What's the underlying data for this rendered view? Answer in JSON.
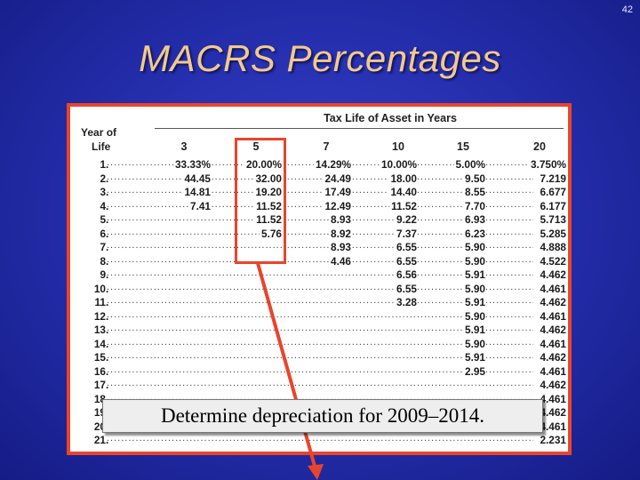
{
  "slide": {
    "page_number": "42",
    "title": "MACRS Percentages",
    "callout": "Determine depreciation for 2009–2014."
  },
  "table": {
    "group_header": "Tax Life of Asset in Years",
    "year_header_line1": "Year of",
    "year_header_line2": "Life",
    "columns": [
      "3",
      "5",
      "7",
      "10",
      "15",
      "20"
    ],
    "rows": [
      {
        "year": "1",
        "values": [
          "33.33%",
          "20.00%",
          "14.29%",
          "10.00%",
          "5.00%",
          "3.750%"
        ]
      },
      {
        "year": "2",
        "values": [
          "44.45",
          "32.00",
          "24.49",
          "18.00",
          "9.50",
          "7.219"
        ]
      },
      {
        "year": "3",
        "values": [
          "14.81",
          "19.20",
          "17.49",
          "14.40",
          "8.55",
          "6.677"
        ]
      },
      {
        "year": "4",
        "values": [
          "7.41",
          "11.52",
          "12.49",
          "11.52",
          "7.70",
          "6.177"
        ]
      },
      {
        "year": "5",
        "values": [
          "",
          "11.52",
          "8.93",
          "9.22",
          "6.93",
          "5.713"
        ]
      },
      {
        "year": "6",
        "values": [
          "",
          "5.76",
          "8.92",
          "7.37",
          "6.23",
          "5.285"
        ]
      },
      {
        "year": "7",
        "values": [
          "",
          "",
          "8.93",
          "6.55",
          "5.90",
          "4.888"
        ]
      },
      {
        "year": "8",
        "values": [
          "",
          "",
          "4.46",
          "6.55",
          "5.90",
          "4.522"
        ]
      },
      {
        "year": "9",
        "values": [
          "",
          "",
          "",
          "6.56",
          "5.91",
          "4.462"
        ]
      },
      {
        "year": "10",
        "values": [
          "",
          "",
          "",
          "6.55",
          "5.90",
          "4.461"
        ]
      },
      {
        "year": "11",
        "values": [
          "",
          "",
          "",
          "3.28",
          "5.91",
          "4.462"
        ]
      },
      {
        "year": "12",
        "values": [
          "",
          "",
          "",
          "",
          "5.90",
          "4.461"
        ]
      },
      {
        "year": "13",
        "values": [
          "",
          "",
          "",
          "",
          "5.91",
          "4.462"
        ]
      },
      {
        "year": "14",
        "values": [
          "",
          "",
          "",
          "",
          "5.90",
          "4.461"
        ]
      },
      {
        "year": "15",
        "values": [
          "",
          "",
          "",
          "",
          "5.91",
          "4.462"
        ]
      },
      {
        "year": "16",
        "values": [
          "",
          "",
          "",
          "",
          "2.95",
          "4.461"
        ]
      },
      {
        "year": "17",
        "values": [
          "",
          "",
          "",
          "",
          "",
          "4.462"
        ]
      },
      {
        "year": "18",
        "values": [
          "",
          "",
          "",
          "",
          "",
          "4.461"
        ]
      },
      {
        "year": "19",
        "values": [
          "",
          "",
          "",
          "",
          "",
          "4.462"
        ]
      },
      {
        "year": "20",
        "values": [
          "",
          "",
          "",
          "",
          "",
          "4.461"
        ]
      },
      {
        "year": "21",
        "values": [
          "",
          "",
          "",
          "",
          "",
          "2.231"
        ]
      }
    ]
  },
  "colors": {
    "background": "#2630b0",
    "title": "#f3c98b",
    "frame": "#e8452c"
  }
}
